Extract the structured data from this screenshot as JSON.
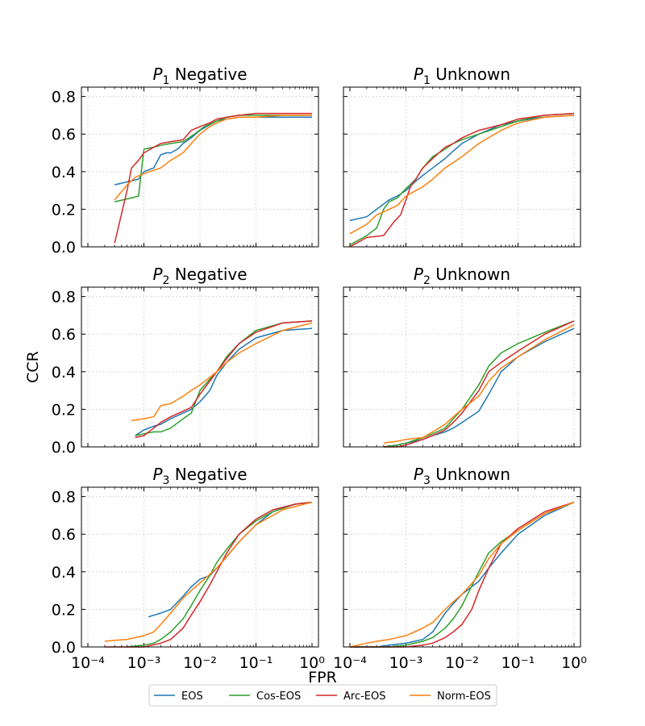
{
  "figure": {
    "xlabel": "FPR",
    "ylabel": "CCR"
  },
  "colors": {
    "EOS": "#1f77b4",
    "Cos-EOS": "#2ca02c",
    "Arc-EOS": "#d62728",
    "Norm-EOS": "#ff7f0e",
    "grid": "#cccccc"
  },
  "legend": {
    "placement": "bottom-center",
    "entries": [
      "EOS",
      "Cos-EOS",
      "Arc-EOS",
      "Norm-EOS"
    ]
  },
  "chart_data": [
    {
      "type": "line",
      "title_sym": "P",
      "title_sub": "1",
      "title_rest": "Negative",
      "x_scale": "log",
      "xlim": [
        0.0001,
        1
      ],
      "ylim": [
        0,
        0.85
      ],
      "x_ticks": [
        0.0001,
        0.001,
        0.01,
        0.1,
        1
      ],
      "y_ticks": [
        0.0,
        0.2,
        0.4,
        0.6,
        0.8
      ],
      "y_tick_labels": [
        "0.0",
        "0.2",
        "0.4",
        "0.6",
        "0.8"
      ],
      "grid": true,
      "series": [
        {
          "name": "EOS",
          "x": [
            0.0003,
            0.0008,
            0.001,
            0.0015,
            0.002,
            0.0025,
            0.003,
            0.004,
            0.005,
            0.007,
            0.01,
            0.015,
            0.02,
            0.03,
            0.05,
            0.1,
            0.3,
            1
          ],
          "y": [
            0.33,
            0.36,
            0.4,
            0.42,
            0.49,
            0.5,
            0.5,
            0.52,
            0.55,
            0.58,
            0.62,
            0.65,
            0.67,
            0.68,
            0.69,
            0.69,
            0.69,
            0.69
          ]
        },
        {
          "name": "Cos-EOS",
          "x": [
            0.0003,
            0.0006,
            0.0008,
            0.001,
            0.0015,
            0.002,
            0.003,
            0.005,
            0.008,
            0.012,
            0.02,
            0.03,
            0.05,
            0.1,
            0.3,
            1
          ],
          "y": [
            0.24,
            0.26,
            0.27,
            0.52,
            0.53,
            0.54,
            0.55,
            0.56,
            0.6,
            0.64,
            0.67,
            0.69,
            0.7,
            0.7,
            0.7,
            0.7
          ]
        },
        {
          "name": "Arc-EOS",
          "x": [
            0.0003,
            0.0005,
            0.0006,
            0.0008,
            0.001,
            0.0015,
            0.002,
            0.003,
            0.005,
            0.007,
            0.01,
            0.015,
            0.02,
            0.03,
            0.05,
            0.1,
            0.3,
            1
          ],
          "y": [
            0.02,
            0.3,
            0.42,
            0.46,
            0.5,
            0.53,
            0.55,
            0.56,
            0.57,
            0.62,
            0.64,
            0.66,
            0.68,
            0.69,
            0.7,
            0.71,
            0.71,
            0.71
          ]
        },
        {
          "name": "Norm-EOS",
          "x": [
            0.0003,
            0.0005,
            0.0007,
            0.001,
            0.002,
            0.003,
            0.005,
            0.007,
            0.01,
            0.015,
            0.02,
            0.03,
            0.05,
            0.1,
            0.3,
            1
          ],
          "y": [
            0.25,
            0.33,
            0.37,
            0.39,
            0.42,
            0.46,
            0.5,
            0.55,
            0.6,
            0.64,
            0.66,
            0.68,
            0.69,
            0.69,
            0.7,
            0.7
          ]
        }
      ]
    },
    {
      "type": "line",
      "title_sym": "P",
      "title_sub": "1",
      "title_rest": "Unknown",
      "x_scale": "log",
      "xlim": [
        0.0001,
        1
      ],
      "ylim": [
        0,
        0.85
      ],
      "x_ticks": [
        0.0001,
        0.001,
        0.01,
        0.1,
        1
      ],
      "y_ticks": [
        0.0,
        0.2,
        0.4,
        0.6,
        0.8
      ],
      "y_tick_labels": [],
      "grid": true,
      "series": [
        {
          "name": "EOS",
          "x": [
            0.0001,
            0.0002,
            0.0003,
            0.0005,
            0.0007,
            0.001,
            0.0015,
            0.002,
            0.003,
            0.005,
            0.007,
            0.01,
            0.02,
            0.05,
            0.1,
            0.3,
            1
          ],
          "y": [
            0.14,
            0.16,
            0.2,
            0.25,
            0.27,
            0.3,
            0.35,
            0.38,
            0.42,
            0.47,
            0.51,
            0.55,
            0.6,
            0.65,
            0.67,
            0.69,
            0.7
          ]
        },
        {
          "name": "Cos-EOS",
          "x": [
            0.0001,
            0.0002,
            0.0003,
            0.0004,
            0.0005,
            0.0007,
            0.001,
            0.0015,
            0.002,
            0.003,
            0.005,
            0.007,
            0.01,
            0.02,
            0.05,
            0.1,
            0.3,
            1
          ],
          "y": [
            0.01,
            0.06,
            0.1,
            0.2,
            0.24,
            0.26,
            0.31,
            0.36,
            0.42,
            0.48,
            0.52,
            0.55,
            0.57,
            0.6,
            0.64,
            0.67,
            0.7,
            0.71
          ]
        },
        {
          "name": "Arc-EOS",
          "x": [
            0.0001,
            0.0002,
            0.0004,
            0.0006,
            0.0008,
            0.001,
            0.0012,
            0.0015,
            0.002,
            0.003,
            0.005,
            0.007,
            0.01,
            0.02,
            0.05,
            0.1,
            0.3,
            1
          ],
          "y": [
            0.0,
            0.05,
            0.06,
            0.13,
            0.17,
            0.25,
            0.32,
            0.36,
            0.42,
            0.47,
            0.53,
            0.55,
            0.58,
            0.62,
            0.65,
            0.68,
            0.7,
            0.71
          ]
        },
        {
          "name": "Norm-EOS",
          "x": [
            0.0001,
            0.0002,
            0.0003,
            0.0005,
            0.0007,
            0.001,
            0.002,
            0.003,
            0.005,
            0.01,
            0.02,
            0.05,
            0.1,
            0.3,
            1
          ],
          "y": [
            0.07,
            0.12,
            0.17,
            0.2,
            0.22,
            0.27,
            0.32,
            0.36,
            0.42,
            0.48,
            0.55,
            0.62,
            0.66,
            0.69,
            0.7
          ]
        }
      ]
    },
    {
      "type": "line",
      "title_sym": "P",
      "title_sub": "2",
      "title_rest": "Negative",
      "x_scale": "log",
      "xlim": [
        0.0001,
        1
      ],
      "ylim": [
        0,
        0.85
      ],
      "x_ticks": [
        0.0001,
        0.001,
        0.01,
        0.1,
        1
      ],
      "y_ticks": [
        0.0,
        0.2,
        0.4,
        0.6,
        0.8
      ],
      "y_tick_labels": [
        "0.0",
        "0.2",
        "0.4",
        "0.6",
        "0.8"
      ],
      "grid": true,
      "series": [
        {
          "name": "EOS",
          "x": [
            0.0007,
            0.001,
            0.0015,
            0.002,
            0.003,
            0.005,
            0.007,
            0.01,
            0.015,
            0.02,
            0.03,
            0.05,
            0.1,
            0.3,
            1
          ],
          "y": [
            0.06,
            0.09,
            0.11,
            0.12,
            0.15,
            0.18,
            0.2,
            0.24,
            0.3,
            0.38,
            0.45,
            0.52,
            0.58,
            0.62,
            0.63
          ]
        },
        {
          "name": "Cos-EOS",
          "x": [
            0.0007,
            0.001,
            0.0015,
            0.002,
            0.003,
            0.005,
            0.007,
            0.01,
            0.015,
            0.02,
            0.03,
            0.05,
            0.1,
            0.3,
            1
          ],
          "y": [
            0.06,
            0.07,
            0.08,
            0.08,
            0.1,
            0.15,
            0.18,
            0.3,
            0.36,
            0.4,
            0.48,
            0.55,
            0.62,
            0.66,
            0.67
          ]
        },
        {
          "name": "Arc-EOS",
          "x": [
            0.0007,
            0.001,
            0.0015,
            0.002,
            0.003,
            0.005,
            0.007,
            0.01,
            0.015,
            0.02,
            0.03,
            0.05,
            0.1,
            0.3,
            1
          ],
          "y": [
            0.05,
            0.06,
            0.1,
            0.13,
            0.16,
            0.19,
            0.21,
            0.28,
            0.35,
            0.4,
            0.47,
            0.55,
            0.61,
            0.66,
            0.67
          ]
        },
        {
          "name": "Norm-EOS",
          "x": [
            0.0006,
            0.001,
            0.0015,
            0.002,
            0.003,
            0.005,
            0.007,
            0.01,
            0.015,
            0.02,
            0.03,
            0.05,
            0.1,
            0.3,
            1
          ],
          "y": [
            0.14,
            0.15,
            0.16,
            0.22,
            0.23,
            0.27,
            0.3,
            0.33,
            0.37,
            0.4,
            0.45,
            0.5,
            0.55,
            0.62,
            0.66
          ]
        }
      ]
    },
    {
      "type": "line",
      "title_sym": "P",
      "title_sub": "2",
      "title_rest": "Unknown",
      "x_scale": "log",
      "xlim": [
        0.0001,
        1
      ],
      "ylim": [
        0,
        0.85
      ],
      "x_ticks": [
        0.0001,
        0.001,
        0.01,
        0.1,
        1
      ],
      "y_ticks": [
        0.0,
        0.2,
        0.4,
        0.6,
        0.8
      ],
      "y_tick_labels": [],
      "grid": true,
      "series": [
        {
          "name": "EOS",
          "x": [
            0.0004,
            0.0007,
            0.001,
            0.002,
            0.003,
            0.005,
            0.007,
            0.01,
            0.02,
            0.03,
            0.05,
            0.1,
            0.3,
            1
          ],
          "y": [
            0.0,
            0.01,
            0.02,
            0.04,
            0.06,
            0.08,
            0.1,
            0.13,
            0.19,
            0.28,
            0.4,
            0.48,
            0.56,
            0.63
          ]
        },
        {
          "name": "Cos-EOS",
          "x": [
            0.0004,
            0.0007,
            0.001,
            0.002,
            0.003,
            0.005,
            0.007,
            0.01,
            0.02,
            0.03,
            0.05,
            0.1,
            0.3,
            1
          ],
          "y": [
            0.0,
            0.01,
            0.02,
            0.05,
            0.07,
            0.1,
            0.15,
            0.2,
            0.33,
            0.43,
            0.5,
            0.55,
            0.61,
            0.67
          ]
        },
        {
          "name": "Arc-EOS",
          "x": [
            0.0004,
            0.0007,
            0.001,
            0.002,
            0.003,
            0.005,
            0.007,
            0.01,
            0.02,
            0.03,
            0.05,
            0.1,
            0.3,
            1
          ],
          "y": [
            0.0,
            0.0,
            0.01,
            0.04,
            0.06,
            0.09,
            0.13,
            0.18,
            0.3,
            0.4,
            0.45,
            0.51,
            0.6,
            0.67
          ]
        },
        {
          "name": "Norm-EOS",
          "x": [
            0.0004,
            0.0007,
            0.001,
            0.002,
            0.003,
            0.005,
            0.007,
            0.01,
            0.02,
            0.03,
            0.05,
            0.1,
            0.3,
            1
          ],
          "y": [
            0.02,
            0.03,
            0.04,
            0.05,
            0.08,
            0.12,
            0.16,
            0.2,
            0.27,
            0.35,
            0.42,
            0.48,
            0.57,
            0.65
          ]
        }
      ]
    },
    {
      "type": "line",
      "title_sym": "P",
      "title_sub": "3",
      "title_rest": "Negative",
      "x_scale": "log",
      "xlim": [
        0.0001,
        1
      ],
      "ylim": [
        0,
        0.85
      ],
      "x_ticks": [
        0.0001,
        0.001,
        0.01,
        0.1,
        1
      ],
      "y_ticks": [
        0.0,
        0.2,
        0.4,
        0.6,
        0.8
      ],
      "y_tick_labels": [
        "0.0",
        "0.2",
        "0.4",
        "0.6",
        "0.8"
      ],
      "x_tick_labels": [
        "10⁻⁴",
        "10⁻³",
        "10⁻²",
        "10⁻¹",
        "10⁰"
      ],
      "grid": true,
      "series": [
        {
          "name": "EOS",
          "x": [
            0.0012,
            0.002,
            0.003,
            0.005,
            0.007,
            0.01,
            0.015,
            0.02,
            0.03,
            0.05,
            0.1,
            0.2,
            0.5,
            1
          ],
          "y": [
            0.16,
            0.18,
            0.2,
            0.27,
            0.32,
            0.36,
            0.38,
            0.42,
            0.48,
            0.56,
            0.65,
            0.72,
            0.76,
            0.77
          ]
        },
        {
          "name": "Cos-EOS",
          "x": [
            0.0005,
            0.001,
            0.0015,
            0.002,
            0.003,
            0.005,
            0.007,
            0.01,
            0.015,
            0.02,
            0.03,
            0.05,
            0.1,
            0.2,
            0.5,
            1
          ],
          "y": [
            0.0,
            0.01,
            0.02,
            0.04,
            0.08,
            0.15,
            0.22,
            0.3,
            0.38,
            0.45,
            0.52,
            0.6,
            0.67,
            0.72,
            0.76,
            0.77
          ]
        },
        {
          "name": "Arc-EOS",
          "x": [
            0.0002,
            0.0005,
            0.001,
            0.002,
            0.003,
            0.005,
            0.007,
            0.01,
            0.015,
            0.02,
            0.03,
            0.05,
            0.1,
            0.2,
            0.5,
            1
          ],
          "y": [
            0.0,
            0.0,
            0.0,
            0.02,
            0.04,
            0.1,
            0.17,
            0.24,
            0.33,
            0.4,
            0.5,
            0.6,
            0.68,
            0.73,
            0.76,
            0.77
          ]
        },
        {
          "name": "Norm-EOS",
          "x": [
            0.0002,
            0.0003,
            0.0005,
            0.0007,
            0.001,
            0.0015,
            0.002,
            0.003,
            0.005,
            0.007,
            0.01,
            0.02,
            0.05,
            0.1,
            0.3,
            1
          ],
          "y": [
            0.03,
            0.035,
            0.04,
            0.05,
            0.06,
            0.08,
            0.12,
            0.18,
            0.26,
            0.3,
            0.34,
            0.42,
            0.56,
            0.65,
            0.73,
            0.77
          ]
        }
      ]
    },
    {
      "type": "line",
      "title_sym": "P",
      "title_sub": "3",
      "title_rest": "Unknown",
      "x_scale": "log",
      "xlim": [
        0.0001,
        1
      ],
      "ylim": [
        0,
        0.85
      ],
      "x_ticks": [
        0.0001,
        0.001,
        0.01,
        0.1,
        1
      ],
      "y_ticks": [
        0.0,
        0.2,
        0.4,
        0.6,
        0.8
      ],
      "y_tick_labels": [],
      "x_tick_labels": [
        "10⁻⁴",
        "10⁻³",
        "10⁻²",
        "10⁻¹",
        "10⁰"
      ],
      "grid": true,
      "series": [
        {
          "name": "EOS",
          "x": [
            0.0001,
            0.0003,
            0.0005,
            0.001,
            0.002,
            0.003,
            0.005,
            0.007,
            0.01,
            0.02,
            0.03,
            0.05,
            0.1,
            0.3,
            1
          ],
          "y": [
            0.0,
            0.0,
            0.01,
            0.02,
            0.04,
            0.08,
            0.18,
            0.23,
            0.28,
            0.35,
            0.42,
            0.5,
            0.6,
            0.7,
            0.77
          ]
        },
        {
          "name": "Cos-EOS",
          "x": [
            0.0001,
            0.0003,
            0.0005,
            0.001,
            0.002,
            0.003,
            0.005,
            0.007,
            0.01,
            0.02,
            0.03,
            0.05,
            0.1,
            0.3,
            1
          ],
          "y": [
            0.0,
            0.0,
            0.0,
            0.01,
            0.03,
            0.05,
            0.1,
            0.15,
            0.22,
            0.4,
            0.5,
            0.56,
            0.62,
            0.71,
            0.77
          ]
        },
        {
          "name": "Arc-EOS",
          "x": [
            0.0001,
            0.0003,
            0.0005,
            0.001,
            0.002,
            0.003,
            0.005,
            0.007,
            0.01,
            0.015,
            0.02,
            0.03,
            0.05,
            0.1,
            0.3,
            1
          ],
          "y": [
            0.0,
            0.0,
            0.0,
            0.0,
            0.01,
            0.02,
            0.05,
            0.08,
            0.12,
            0.2,
            0.3,
            0.42,
            0.55,
            0.63,
            0.72,
            0.77
          ]
        },
        {
          "name": "Norm-EOS",
          "x": [
            0.0001,
            0.0002,
            0.0003,
            0.0005,
            0.001,
            0.002,
            0.003,
            0.005,
            0.007,
            0.01,
            0.02,
            0.03,
            0.05,
            0.1,
            0.3,
            1
          ],
          "y": [
            0.0,
            0.02,
            0.03,
            0.04,
            0.06,
            0.1,
            0.13,
            0.2,
            0.24,
            0.28,
            0.38,
            0.47,
            0.55,
            0.62,
            0.71,
            0.77
          ]
        }
      ]
    }
  ]
}
